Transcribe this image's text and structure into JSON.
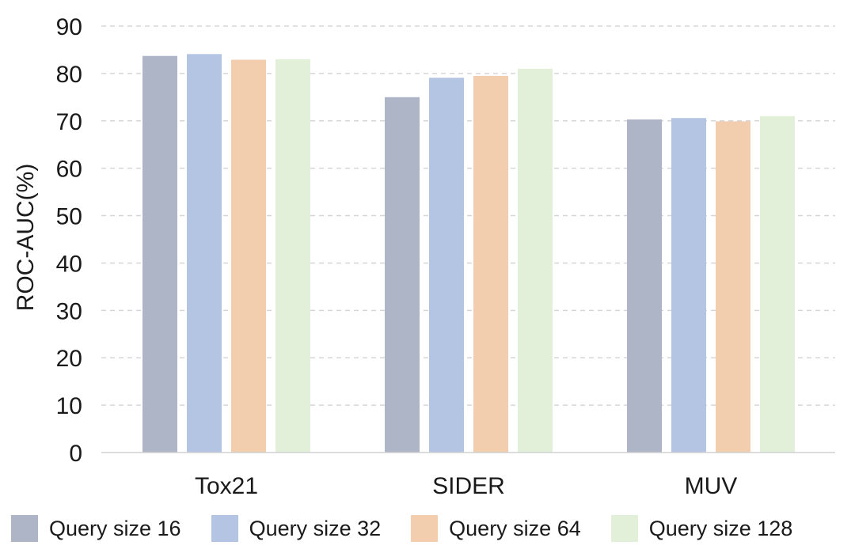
{
  "chart_data": {
    "type": "bar",
    "title": "",
    "xlabel": "",
    "ylabel": "ROC-AUC(%)",
    "ylim": [
      0,
      90
    ],
    "yticks": [
      0,
      10,
      20,
      30,
      40,
      50,
      60,
      70,
      80,
      90
    ],
    "grid": true,
    "legend_position": "bottom",
    "categories": [
      "Tox21",
      "SIDER",
      "MUV"
    ],
    "series": [
      {
        "name": "Query size 16",
        "color": "#adb5c7",
        "values": [
          83.7,
          75.0,
          70.3
        ]
      },
      {
        "name": "Query size 32",
        "color": "#b4c5e4",
        "values": [
          84.1,
          79.1,
          70.6
        ]
      },
      {
        "name": "Query size 64",
        "color": "#f2cdae",
        "values": [
          82.9,
          79.5,
          69.9
        ]
      },
      {
        "name": "Query size 128",
        "color": "#e2efd9",
        "values": [
          83.0,
          81.0,
          71.0
        ]
      }
    ]
  }
}
